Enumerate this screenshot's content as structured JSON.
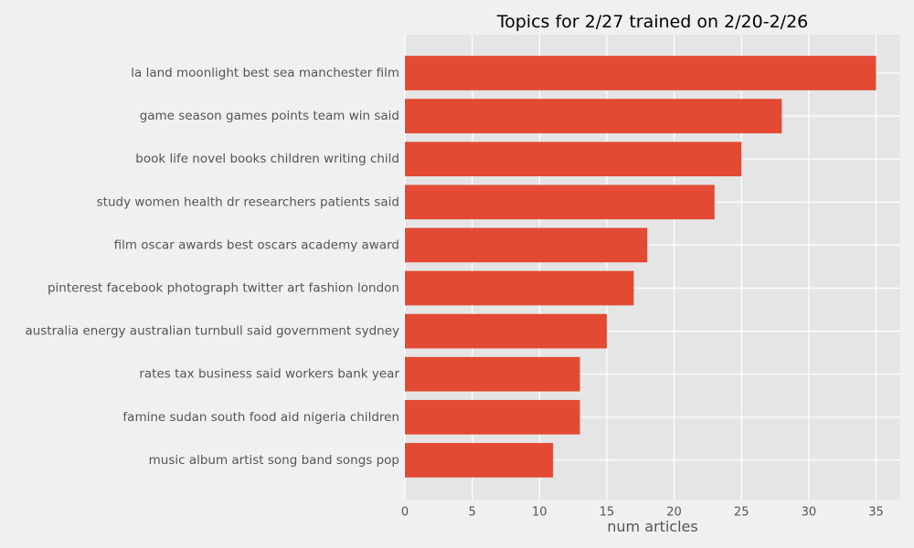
{
  "chart_data": {
    "type": "bar",
    "orientation": "horizontal",
    "title": "Topics for 2/27 trained on 2/20-2/26",
    "xlabel": "num articles",
    "ylabel": "",
    "categories": [
      "la land moonlight best sea manchester film",
      "game season games points team win said",
      "book life novel books children writing child",
      "study women health dr researchers patients said",
      "film oscar awards best oscars academy award",
      "pinterest facebook photograph twitter art fashion london",
      "australia energy australian turnbull said government sydney",
      "rates tax business said workers bank year",
      "famine sudan south food aid nigeria children",
      "music album artist song band songs pop"
    ],
    "values": [
      35,
      28,
      25,
      23,
      18,
      17,
      15,
      13,
      13,
      11
    ],
    "xlim": [
      0,
      36.8
    ],
    "xticks": [
      "0",
      "5",
      "10",
      "15",
      "20",
      "25",
      "30",
      "35"
    ],
    "grid": true,
    "colors": {
      "bar": "#e24a33",
      "plot_background": "#e5e5e5",
      "figure_background": "#f0f0f0",
      "grid": "#ffffff"
    }
  }
}
